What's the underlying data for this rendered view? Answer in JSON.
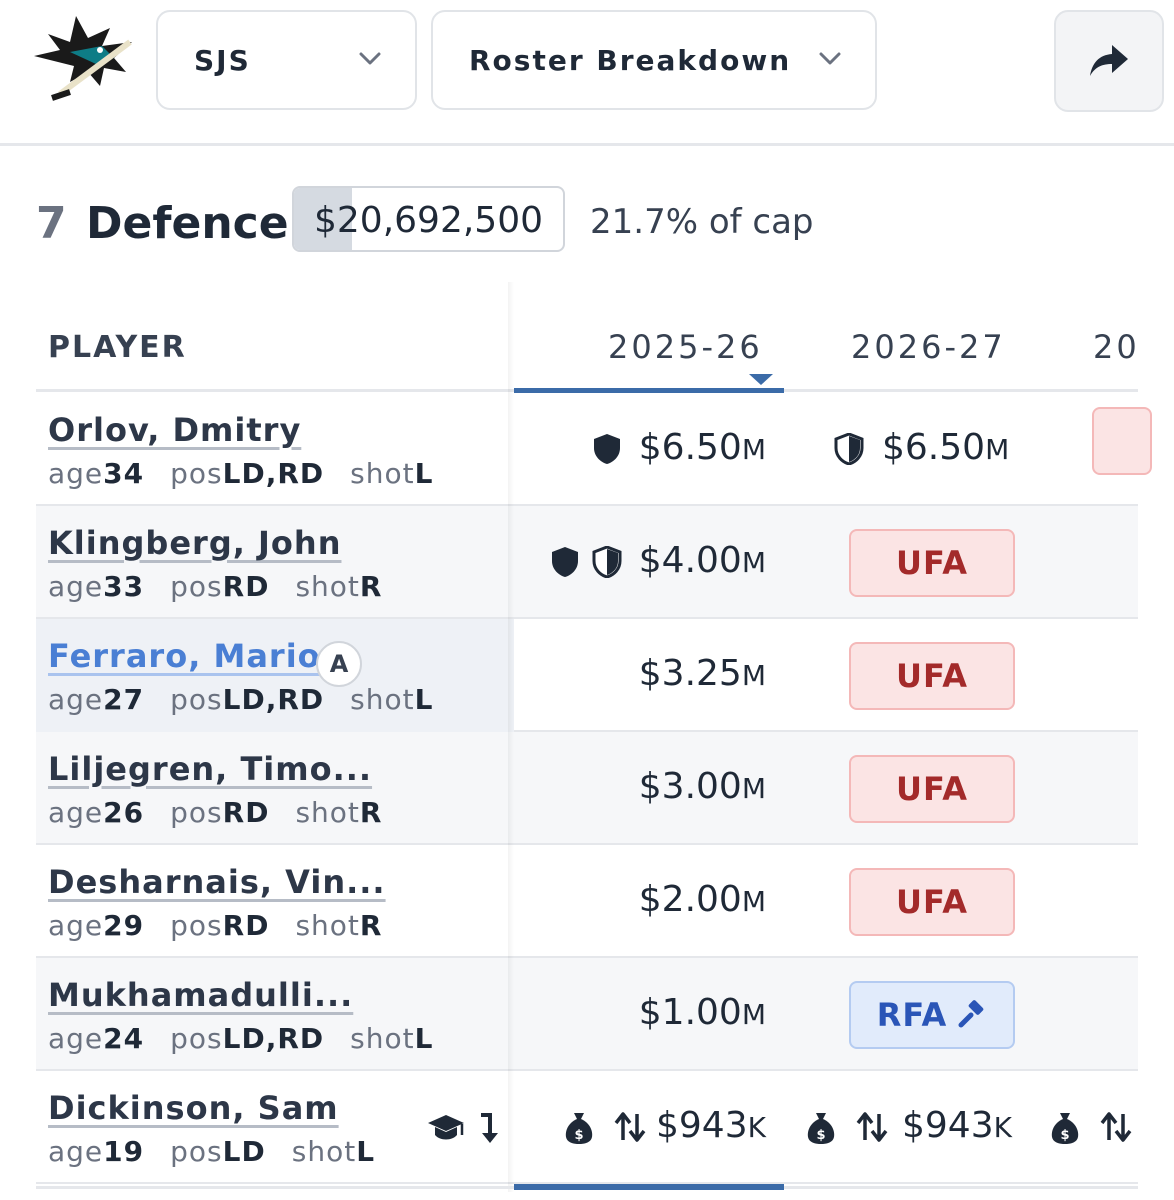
{
  "header": {
    "team_logo": "shark-logo",
    "team_select": {
      "value": "SJS"
    },
    "view_select": {
      "value": "Roster Breakdown"
    },
    "share_icon": "share-arrow-icon"
  },
  "section": {
    "count": "7",
    "title": "Defence",
    "cap_hit": "$20,692,500",
    "cap_pct_text": "21.7% of cap",
    "cap_pct": 21.7
  },
  "table": {
    "player_header": "PLAYER",
    "seasons": [
      "2025-26",
      "2026-27",
      "20"
    ],
    "rows": [
      {
        "name": "Orlov, Dmitry",
        "age_label": "age",
        "age": "34",
        "pos_label": "pos",
        "pos": "LD,RD",
        "shot_label": "shot",
        "shot": "L",
        "cap1": "$6.50",
        "cap1_unit": "M",
        "cap2": "$6.50",
        "cap2_unit": "M"
      },
      {
        "name": "Klingberg, John",
        "age_label": "age",
        "age": "33",
        "pos_label": "pos",
        "pos": "RD",
        "shot_label": "shot",
        "shot": "R",
        "cap1": "$4.00",
        "cap1_unit": "M",
        "status2": "UFA"
      },
      {
        "name": "Ferraro, Mario",
        "badge": "A",
        "age_label": "age",
        "age": "27",
        "pos_label": "pos",
        "pos": "LD,RD",
        "shot_label": "shot",
        "shot": "L",
        "cap1": "$3.25",
        "cap1_unit": "M",
        "status2": "UFA"
      },
      {
        "name": "Liljegren, Timo...",
        "age_label": "age",
        "age": "26",
        "pos_label": "pos",
        "pos": "RD",
        "shot_label": "shot",
        "shot": "R",
        "cap1": "$3.00",
        "cap1_unit": "M",
        "status2": "UFA"
      },
      {
        "name": "Desharnais, Vin...",
        "age_label": "age",
        "age": "29",
        "pos_label": "pos",
        "pos": "RD",
        "shot_label": "shot",
        "shot": "R",
        "cap1": "$2.00",
        "cap1_unit": "M",
        "status2": "UFA"
      },
      {
        "name": "Mukhamadulli...",
        "age_label": "age",
        "age": "24",
        "pos_label": "pos",
        "pos": "LD,RD",
        "shot_label": "shot",
        "shot": "L",
        "cap1": "$1.00",
        "cap1_unit": "M",
        "status2": "RFA"
      },
      {
        "name": "Dickinson, Sam",
        "age_label": "age",
        "age": "19",
        "pos_label": "pos",
        "pos": "LD",
        "shot_label": "shot",
        "shot": "L",
        "cap1": "$943",
        "cap1_unit": "K",
        "cap2": "$943",
        "cap2_unit": "K"
      }
    ]
  },
  "colors": {
    "accent": "#3b6ba8",
    "ufa_text": "#a32a2a",
    "rfa_text": "#2a55b7",
    "link": "#4a7fd4"
  }
}
